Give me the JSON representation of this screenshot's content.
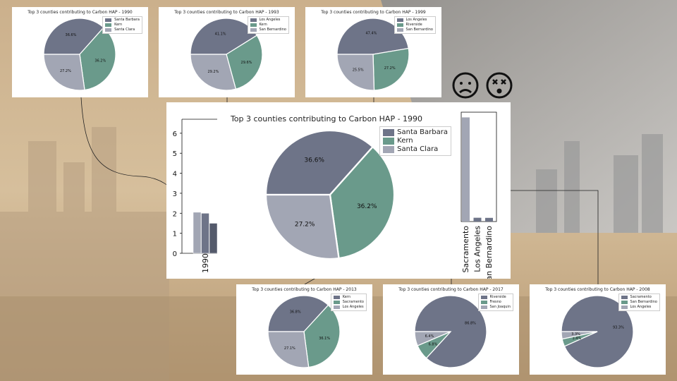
{
  "colors": {
    "s1": "#6e7488",
    "s2": "#6a9a8b",
    "s3": "#a2a6b4",
    "axis": "#111111"
  },
  "chart_data": [
    {
      "type": "pie",
      "title": "Top 3 counties contributing to Carbon HAP - 1990",
      "labels": [
        "Santa Barbara",
        "Kern",
        "Santa Clara"
      ],
      "values": [
        36.6,
        36.2,
        27.2
      ],
      "pct_labels": [
        "36.6%",
        "36.2%",
        "27.2%"
      ],
      "legend": "top-right"
    },
    {
      "type": "pie",
      "title": "Top 3 counties contributing to Carbon HAP - 1993",
      "labels": [
        "Los Angeles",
        "Kern",
        "San Bernardino"
      ],
      "values": [
        41.1,
        29.6,
        29.2
      ],
      "pct_labels": [
        "41.1%",
        "29.6%",
        "29.2%"
      ],
      "legend": "top-right"
    },
    {
      "type": "pie",
      "title": "Top 3 counties contributing to Carbon HAP - 1999",
      "labels": [
        "Los Angeles",
        "Riverside",
        "San Bernardino"
      ],
      "values": [
        47.4,
        27.2,
        25.5
      ],
      "pct_labels": [
        "47.4%",
        "27.2%",
        "25.5%"
      ],
      "legend": "top-right"
    },
    {
      "type": "pie",
      "title": "Top 3 counties contributing to Carbon HAP - 1990",
      "labels": [
        "Santa Barbara",
        "Kern",
        "Santa Clara"
      ],
      "values": [
        36.6,
        36.2,
        27.2
      ],
      "pct_labels": [
        "36.6%",
        "36.2%",
        "27.2%"
      ],
      "legend": "top-right"
    },
    {
      "type": "pie",
      "title": "Top 3 counties contributing to Carbon HAP - 2013",
      "labels": [
        "Kern",
        "Sacramento",
        "Los Angeles"
      ],
      "values": [
        36.8,
        36.1,
        27.1
      ],
      "pct_labels": [
        "36.8%",
        "36.1%",
        "27.1%"
      ],
      "legend": "top-right"
    },
    {
      "type": "pie",
      "title": "Top 3 counties contributing to Carbon HAP - 2017",
      "labels": [
        "Riverside",
        "Fresno",
        "San Joaquin"
      ],
      "values": [
        86.8,
        6.8,
        6.4
      ],
      "pct_labels": [
        "86.8%",
        "6.8%",
        "6.4%"
      ],
      "legend": "top-right"
    },
    {
      "type": "pie",
      "title": "Top 3 counties contributing to Carbon HAP - 2008",
      "labels": [
        "Sacramento",
        "San Bernardino",
        "Los Angeles"
      ],
      "values": [
        93.3,
        3.4,
        3.3
      ],
      "pct_labels": [
        "93.3%",
        "3.4%",
        "3.3%"
      ],
      "legend": "top-right"
    },
    {
      "type": "bar",
      "categories": [
        "1990"
      ],
      "series_values": [
        2.05,
        2.0,
        1.5
      ],
      "yticks": [
        "0",
        "1",
        "2",
        "3",
        "4",
        "5",
        "6"
      ],
      "ylim": [
        0,
        6.7
      ]
    },
    {
      "type": "bar",
      "categories": [
        "Sacramento",
        "Los Angeles",
        "San Bernardino"
      ],
      "values": [
        93.3,
        3.4,
        3.3
      ]
    }
  ]
}
